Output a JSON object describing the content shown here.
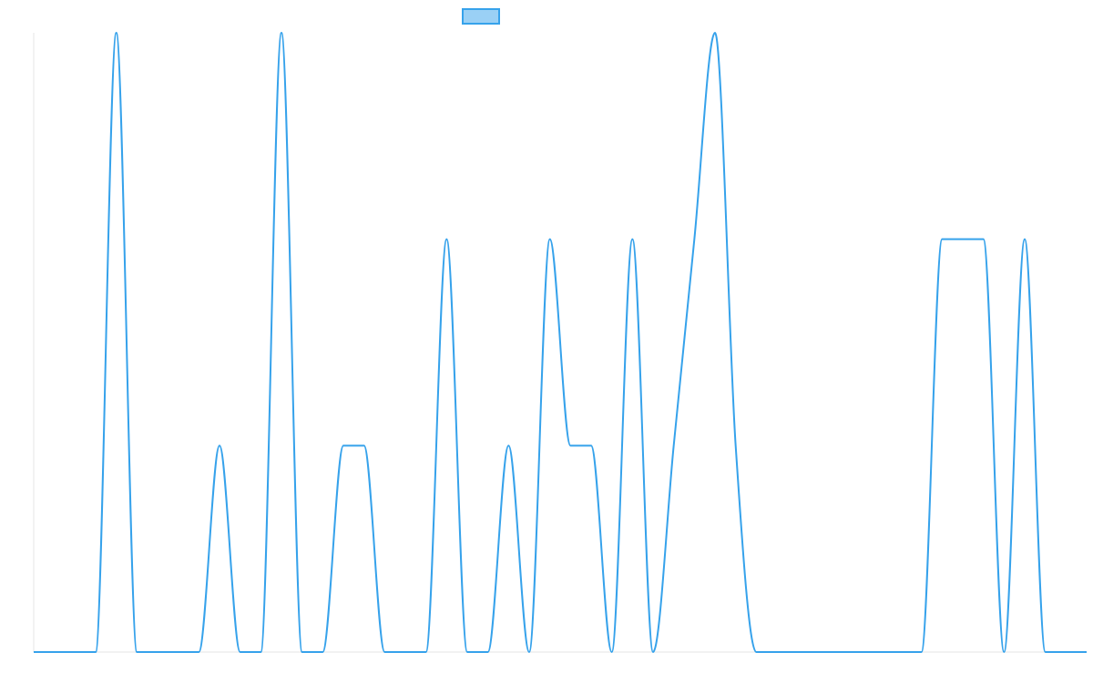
{
  "chart_data": {
    "type": "line",
    "title": "",
    "xlabel": "",
    "ylabel": "",
    "legend": {
      "position": "top-center",
      "labels": [
        ""
      ]
    },
    "axes": {
      "show_x_axis_line": true,
      "show_y_axis_line": true,
      "show_ticks": false,
      "grid": false
    },
    "ylim": [
      0,
      3
    ],
    "x": [
      0,
      1,
      2,
      3,
      4,
      5,
      6,
      7,
      8,
      9,
      10,
      11,
      12,
      13,
      14,
      15,
      16,
      17,
      18,
      19,
      20,
      21,
      22,
      23,
      24,
      25,
      26,
      27,
      28,
      29,
      30,
      31,
      32,
      33,
      34,
      35,
      36,
      37,
      38,
      39,
      40,
      41,
      42,
      43,
      44,
      45,
      46,
      47,
      48,
      49,
      50,
      51
    ],
    "series": [
      {
        "name": "",
        "color": "#36a2eb",
        "fill": "#9ad0f5",
        "curve": "monotone",
        "values": [
          0,
          0,
          0,
          0,
          3,
          0,
          0,
          0,
          0,
          1,
          0,
          0,
          3,
          0,
          0,
          1,
          1,
          0,
          0,
          0,
          2,
          0,
          0,
          1,
          0,
          2,
          1,
          1,
          0,
          2,
          0,
          1,
          2,
          3,
          1,
          0,
          0,
          0,
          0,
          0,
          0,
          0,
          0,
          0,
          2,
          2,
          2,
          0,
          2,
          0,
          0,
          0
        ]
      }
    ]
  }
}
